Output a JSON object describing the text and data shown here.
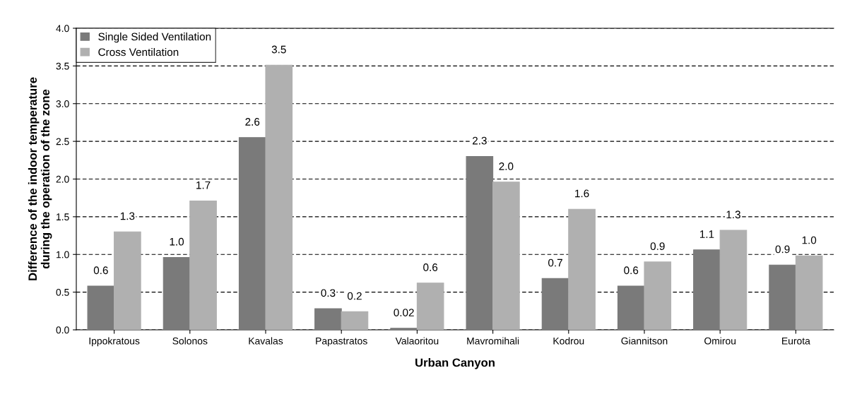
{
  "chart_data": {
    "type": "bar",
    "xlabel": "Urban Canyon",
    "ylabel": "Difference of the indoor temperature\nduring the operation of the zone",
    "categories": [
      "Ippokratous",
      "Solonos",
      "Kavalas",
      "Papastratos",
      "Valaoritou",
      "Mavromihali",
      "Kodrou",
      "Giannitson",
      "Omirou",
      "Eurota"
    ],
    "series": [
      {
        "name": "Single Sided Ventilation",
        "color": "#7a7a7a",
        "values": [
          0.58,
          0.96,
          2.55,
          0.28,
          0.02,
          2.3,
          0.68,
          0.58,
          1.06,
          0.86
        ],
        "value_labels": [
          "0.6",
          "1.0",
          "2.6",
          "0.3",
          "0.02",
          "2.3",
          "0.7",
          "0.6",
          "1.1",
          "0.9"
        ]
      },
      {
        "name": "Cross Ventilation",
        "color": "#b0b0b0",
        "values": [
          1.3,
          1.71,
          3.51,
          0.24,
          0.62,
          1.96,
          1.6,
          0.9,
          1.32,
          0.98
        ],
        "value_labels": [
          "1.3",
          "1.7",
          "3.5",
          "0.2",
          "0.6",
          "2.0",
          "1.6",
          "0.9",
          "1.3",
          "1.0"
        ]
      }
    ],
    "ylim": [
      0,
      4
    ],
    "yticks": [
      {
        "value": 0,
        "label": "0.0"
      },
      {
        "value": 0.5,
        "label": "0.5"
      },
      {
        "value": 1,
        "label": "1.0"
      },
      {
        "value": 1.5,
        "label": "1.5"
      },
      {
        "value": 2,
        "label": "2.0"
      },
      {
        "value": 2.5,
        "label": "2.5"
      },
      {
        "value": 3,
        "label": "3.0"
      },
      {
        "value": 3.5,
        "label": "3.5"
      },
      {
        "value": 4,
        "label": "4.0"
      }
    ],
    "grid": "y",
    "legend": "top left"
  }
}
